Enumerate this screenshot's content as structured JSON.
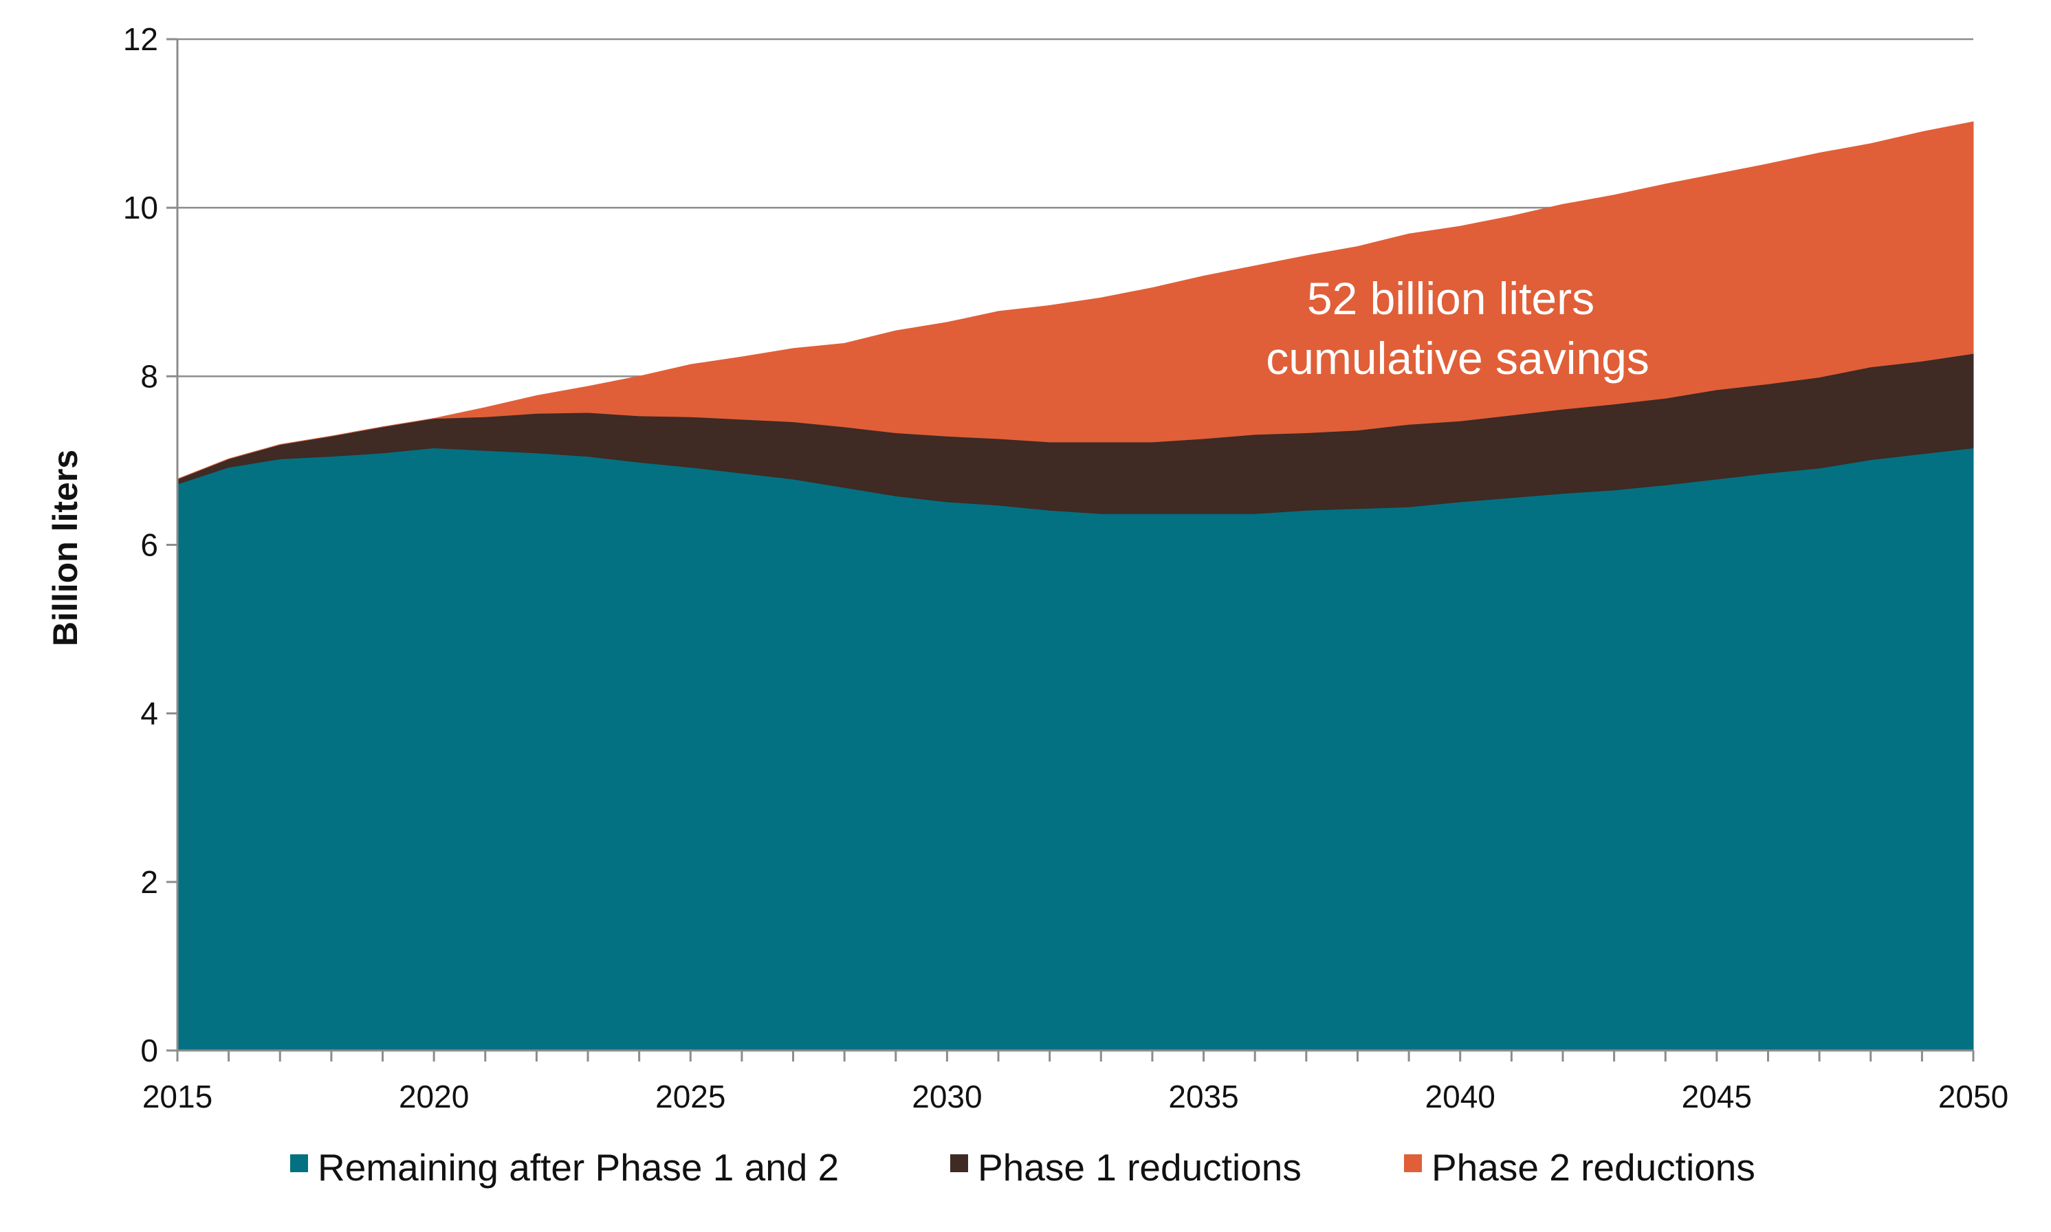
{
  "chart_data": {
    "type": "area",
    "stacked": true,
    "x": [
      2015,
      2016,
      2017,
      2018,
      2019,
      2020,
      2021,
      2022,
      2023,
      2024,
      2025,
      2026,
      2027,
      2028,
      2029,
      2030,
      2031,
      2032,
      2033,
      2034,
      2035,
      2036,
      2037,
      2038,
      2039,
      2040,
      2041,
      2042,
      2043,
      2044,
      2045,
      2046,
      2047,
      2048,
      2049,
      2050
    ],
    "series": [
      {
        "name": "Remaining after Phase 1 and 2",
        "color": "#037182",
        "values": [
          6.72,
          6.92,
          7.02,
          7.05,
          7.09,
          7.15,
          7.12,
          7.09,
          7.05,
          6.98,
          6.92,
          6.85,
          6.78,
          6.68,
          6.58,
          6.51,
          6.47,
          6.41,
          6.37,
          6.37,
          6.37,
          6.37,
          6.41,
          6.43,
          6.45,
          6.51,
          6.56,
          6.61,
          6.65,
          6.71,
          6.78,
          6.85,
          6.91,
          7.01,
          7.08,
          7.15
        ]
      },
      {
        "name": "Phase 1 reductions",
        "color": "#3F2A24",
        "values": [
          0.06,
          0.1,
          0.17,
          0.24,
          0.31,
          0.35,
          0.4,
          0.47,
          0.52,
          0.55,
          0.6,
          0.64,
          0.68,
          0.72,
          0.75,
          0.78,
          0.79,
          0.81,
          0.85,
          0.85,
          0.89,
          0.94,
          0.92,
          0.93,
          0.98,
          0.96,
          0.98,
          1.0,
          1.02,
          1.03,
          1.06,
          1.06,
          1.08,
          1.1,
          1.1,
          1.12
        ]
      },
      {
        "name": "Phase 2 reductions",
        "color": "#E05F38",
        "values": [
          0,
          0,
          0,
          0,
          0,
          0,
          0.11,
          0.21,
          0.31,
          0.47,
          0.62,
          0.74,
          0.87,
          0.99,
          1.21,
          1.35,
          1.51,
          1.62,
          1.71,
          1.83,
          1.93,
          2.0,
          2.1,
          2.18,
          2.26,
          2.31,
          2.36,
          2.43,
          2.48,
          2.54,
          2.56,
          2.61,
          2.66,
          2.65,
          2.72,
          2.75
        ]
      }
    ],
    "xlim": [
      2015,
      2050
    ],
    "ylim": [
      0,
      12
    ],
    "yticks": [
      0,
      2,
      4,
      6,
      8,
      10,
      12
    ],
    "ytick_labels": [
      "0",
      "2",
      "4",
      "6",
      "8",
      "10",
      "12"
    ],
    "xticks": [
      2015,
      2020,
      2025,
      2030,
      2035,
      2040,
      2045,
      2050
    ],
    "xtick_labels": [
      "2015",
      "2020",
      "2025",
      "2030",
      "2035",
      "2040",
      "2045",
      "2050"
    ],
    "ylabel": "Billion liters",
    "xlabel": "",
    "title": "",
    "grid": true,
    "legend_position": "bottom",
    "annotation": {
      "line1": "52 billion liters",
      "line2": "cumulative savings"
    }
  }
}
